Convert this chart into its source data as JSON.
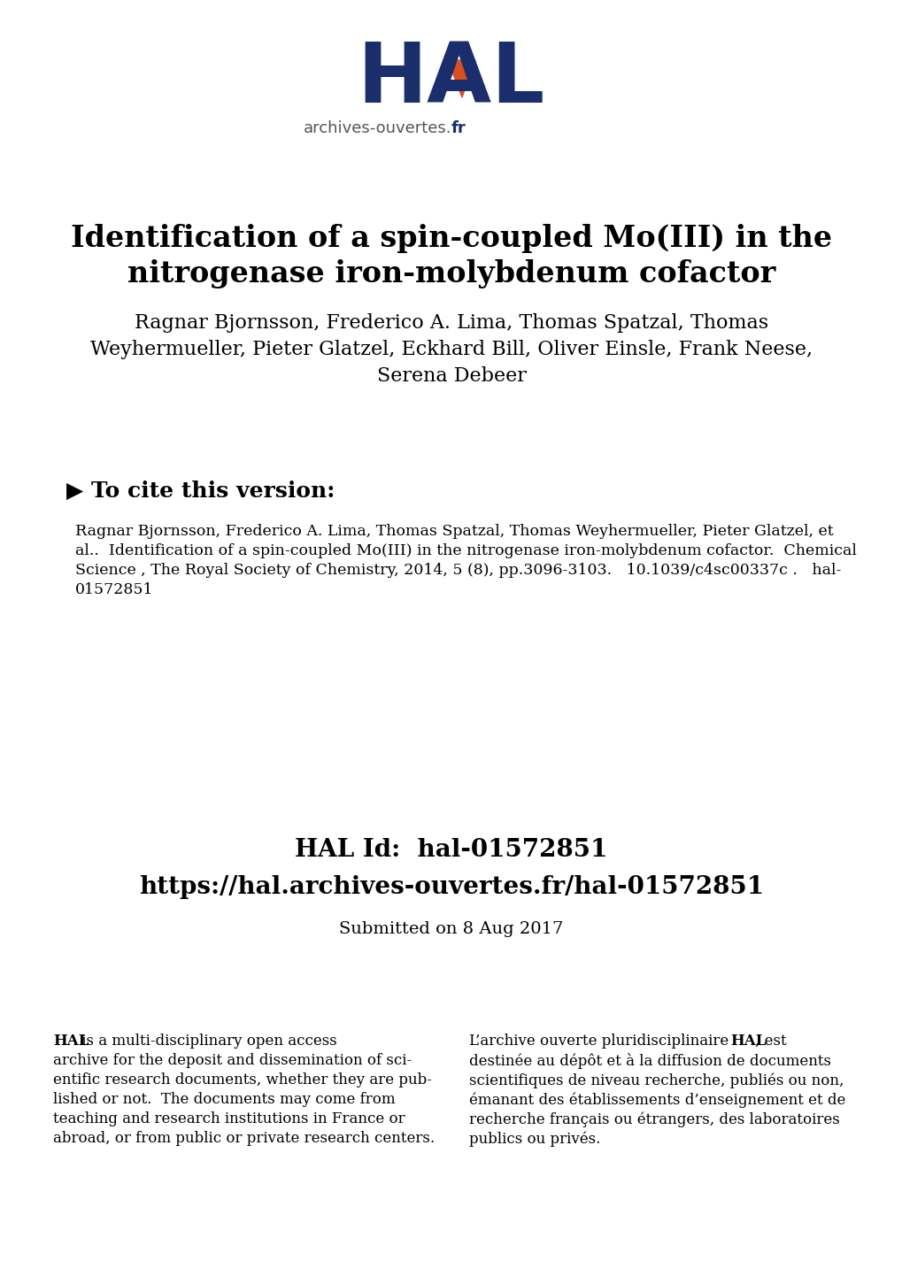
{
  "bg_color": "#ffffff",
  "logo_hal_color": "#1a2e6b",
  "logo_orange_color": "#d94f1e",
  "logo_text_normal": "archives-ouvertes.",
  "logo_text_bold": "fr",
  "title_line1": "Identification of a spin-coupled Mo(III) in the",
  "title_line2": "nitrogenase iron-molybdenum cofactor",
  "author_line1": "Ragnar Bjornsson, Frederico A. Lima, Thomas Spatzal, Thomas",
  "author_line2": "Weyhermueller, Pieter Glatzel, Eckhard Bill, Oliver Einsle, Frank Neese,",
  "author_line3": "Serena Debeer",
  "cite_header": "▶ To cite this version:",
  "cite_text_line1": "Ragnar Bjornsson, Frederico A. Lima, Thomas Spatzal, Thomas Weyhermueller, Pieter Glatzel, et",
  "cite_text_line2": "al..  Identification of a spin-coupled Mo(III) in the nitrogenase iron-molybdenum cofactor.  Chemical",
  "cite_text_line3": "Science , The Royal Society of Chemistry, 2014, 5 (8), pp.3096-3103.   10.1039/c4sc00337c .   hal-",
  "cite_text_line4": "01572851",
  "hal_id_label": "HAL Id:  hal-01572851",
  "hal_url": "https://hal.archives-ouvertes.fr/hal-01572851",
  "submitted": "Submitted on 8 Aug 2017",
  "left_col_line1": "HAL is a multi-disciplinary open access",
  "left_col_line2": "archive for the deposit and dissemination of sci-",
  "left_col_line3": "entific research documents, whether they are pub-",
  "left_col_line4": "lished or not.  The documents may come from",
  "left_col_line5": "teaching and research institutions in France or",
  "left_col_line6": "abroad, or from public or private research centers.",
  "right_col_line1": "L’archive ouverte pluridisciplinaire HAL, est",
  "right_col_line2": "destinée au dépôt et à la diffusion de documents",
  "right_col_line3": "scientifiques de niveau recherche, publiés ou non,",
  "right_col_line4": "émanant des établissements d’enseignement et de",
  "right_col_line5": "recherche français ou étrangers, des laboratoires",
  "right_col_line6": "publics ou privés.",
  "fig_width": 10.2,
  "fig_height": 14.42,
  "dpi": 100
}
